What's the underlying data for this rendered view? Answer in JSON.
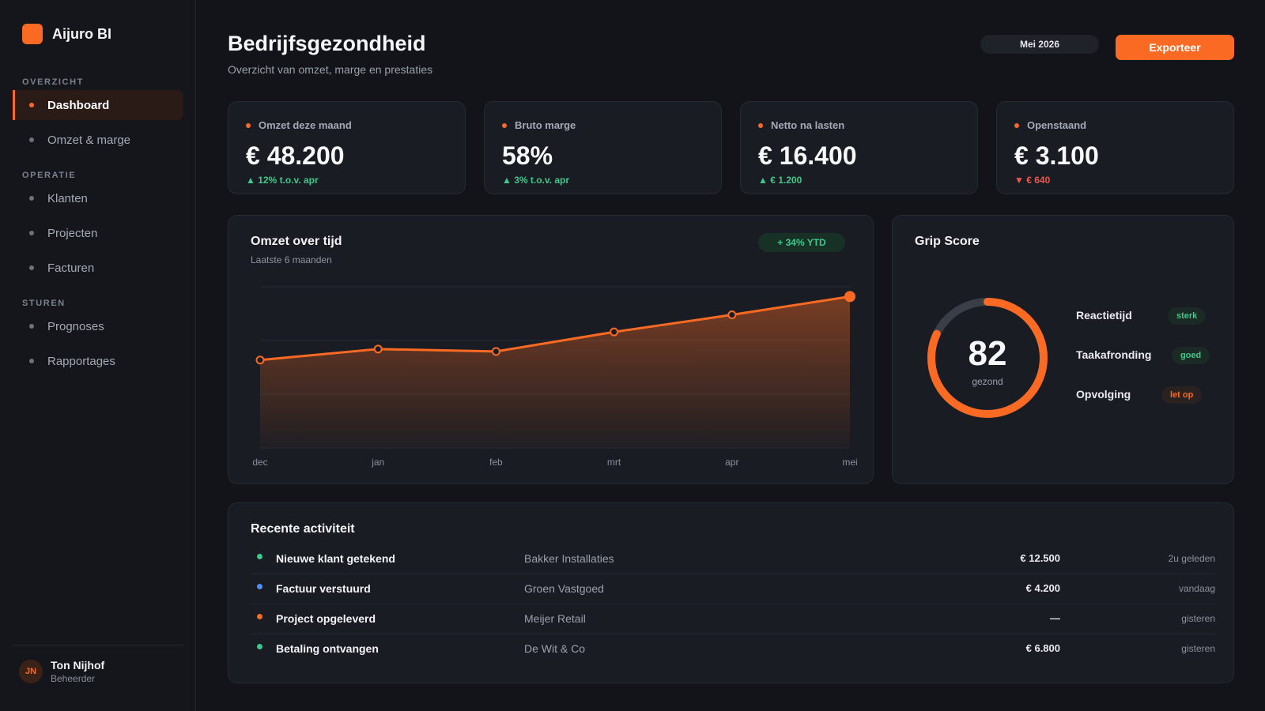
{
  "app": {
    "name": "Aijuro BI"
  },
  "sidebar": {
    "sections": [
      {
        "label": "OVERZICHT",
        "items": [
          {
            "label": "Dashboard",
            "active": true
          },
          {
            "label": "Omzet & marge"
          }
        ]
      },
      {
        "label": "OPERATIE",
        "items": [
          {
            "label": "Klanten"
          },
          {
            "label": "Projecten"
          },
          {
            "label": "Facturen"
          }
        ]
      },
      {
        "label": "STUREN",
        "items": [
          {
            "label": "Prognoses"
          },
          {
            "label": "Rapportages"
          }
        ]
      }
    ],
    "user": {
      "initials": "JN",
      "name": "Ton Nijhof",
      "role": "Beheerder"
    }
  },
  "header": {
    "title": "Bedrijfsgezondheid",
    "subtitle": "Overzicht van omzet, marge en prestaties",
    "period": "Mei 2026",
    "export_label": "Exporteer"
  },
  "kpis": [
    {
      "label": "Omzet deze maand",
      "value": "€ 48.200",
      "delta": "▲ 12% t.o.v. apr",
      "trend": "up"
    },
    {
      "label": "Bruto marge",
      "value": "58%",
      "delta": "▲ 3% t.o.v. apr",
      "trend": "up"
    },
    {
      "label": "Netto na lasten",
      "value": "€ 16.400",
      "delta": "▲ € 1.200",
      "trend": "up"
    },
    {
      "label": "Openstaand",
      "value": "€ 3.100",
      "delta": "▼ € 640",
      "trend": "down"
    }
  ],
  "revenue": {
    "title": "Omzet over tijd",
    "subtitle": "Laatste 6 maanden",
    "badge": "+ 34% YTD"
  },
  "chart_data": {
    "type": "area",
    "categories": [
      "dec",
      "jan",
      "feb",
      "mrt",
      "apr",
      "mei"
    ],
    "values": [
      36,
      40.5,
      39.5,
      47.5,
      54.5,
      62
    ],
    "ylim": [
      0,
      66
    ],
    "grid": true,
    "title": "",
    "xlabel": "",
    "ylabel": "",
    "color": "#fb6a23"
  },
  "grip": {
    "title": "Grip Score",
    "score": 82,
    "score_label": "gezond",
    "ring_color": "#fb6a23",
    "track_color": "#3a3e47",
    "metrics": [
      {
        "name": "Reactietijd",
        "status": "sterk",
        "tone": "green"
      },
      {
        "name": "Taakafronding",
        "status": "goed",
        "tone": "green"
      },
      {
        "name": "Opvolging",
        "status": "let op",
        "tone": "orange"
      }
    ]
  },
  "activity": {
    "title": "Recente activiteit",
    "rows": [
      {
        "title": "Nieuwe klant getekend",
        "client": "Bakker Installaties",
        "amount": "€ 12.500",
        "time": "2u geleden",
        "color": "#3ec98a"
      },
      {
        "title": "Factuur verstuurd",
        "client": "Groen Vastgoed",
        "amount": "€ 4.200",
        "time": "vandaag",
        "color": "#4f8ef7"
      },
      {
        "title": "Project opgeleverd",
        "client": "Meijer Retail",
        "amount": "—",
        "time": "gisteren",
        "color": "#fb6a23"
      },
      {
        "title": "Betaling ontvangen",
        "client": "De Wit & Co",
        "amount": "€ 6.800",
        "time": "gisteren",
        "color": "#3ec98a"
      }
    ]
  }
}
